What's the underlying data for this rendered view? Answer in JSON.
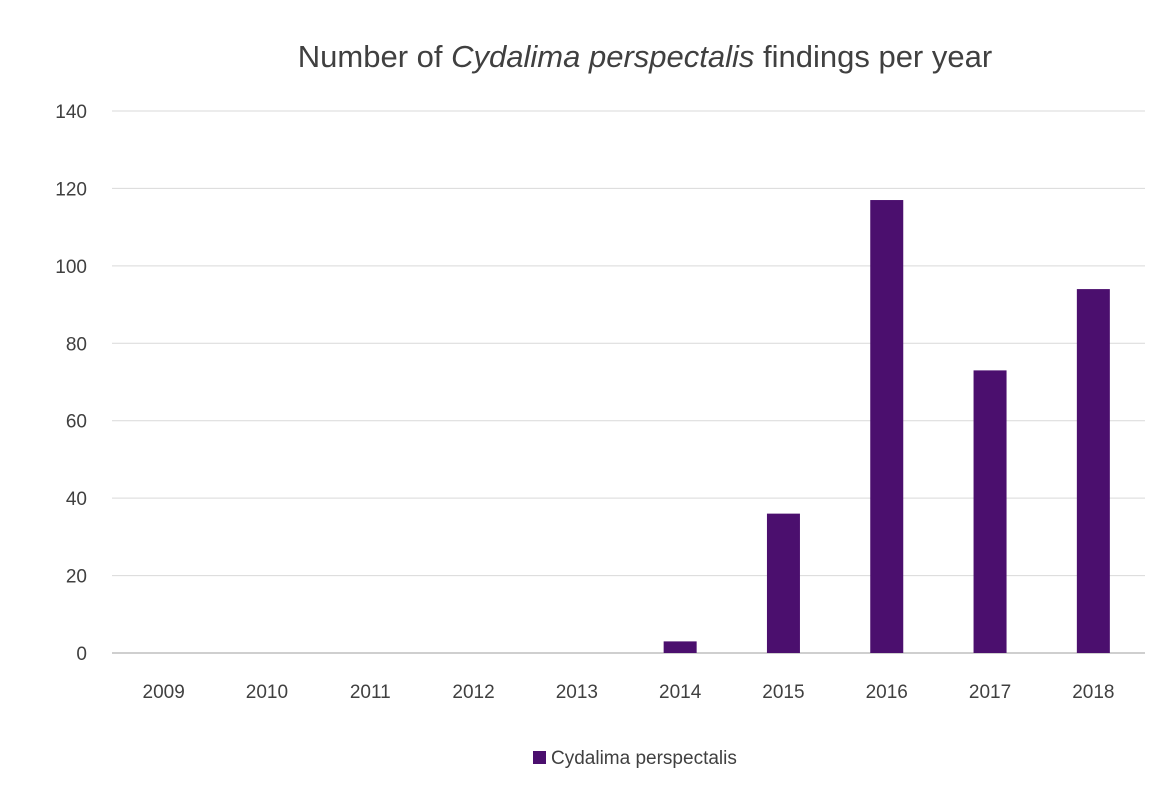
{
  "chart_data": {
    "type": "bar",
    "title_prefix": "Number of ",
    "title_italic": "Cydalima perspectalis",
    "title_suffix": " findings per year",
    "xlabel": "",
    "ylabel": "",
    "ylim": [
      0,
      140
    ],
    "yticks": [
      "0",
      "20",
      "40",
      "60",
      "80",
      "100",
      "120",
      "140"
    ],
    "categories": [
      "2009",
      "2010",
      "2011",
      "2012",
      "2013",
      "2014",
      "2015",
      "2016",
      "2017",
      "2018"
    ],
    "series": [
      {
        "name": "Cydalima perspectalis",
        "values": [
          0,
          0,
          0,
          0,
          0,
          3,
          36,
          117,
          73,
          94
        ]
      }
    ],
    "grid": true,
    "legend_position": "bottom",
    "colors": {
      "bar": "#4b0f6e",
      "grid": "#d9d9d9",
      "axis": "#bfbfbf",
      "text": "#404040"
    }
  }
}
